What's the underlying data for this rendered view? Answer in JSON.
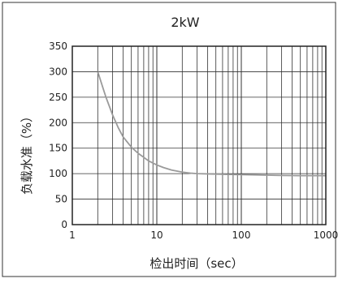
{
  "chart_data": {
    "type": "line",
    "title": "2kW",
    "xlabel": "检出时间（sec）",
    "ylabel": "负载水准（%）",
    "x_scale": "log",
    "xlim": [
      1,
      1000
    ],
    "ylim": [
      0,
      350
    ],
    "x_ticks": [
      1,
      10,
      100,
      1000
    ],
    "x_tick_labels": [
      "1",
      "10",
      "100",
      "1000"
    ],
    "y_ticks": [
      0,
      50,
      100,
      150,
      200,
      250,
      300,
      350
    ],
    "y_tick_labels": [
      "0",
      "50",
      "100",
      "150",
      "200",
      "250",
      "300",
      "350"
    ],
    "grid": true,
    "legend": "none",
    "colors": {
      "line": "#9a9a9a",
      "grid": "#333333",
      "frame": "#222222"
    },
    "series": [
      {
        "x": [
          2,
          2.5,
          3,
          3.5,
          4,
          5,
          6,
          7,
          8,
          10,
          12,
          15,
          20,
          25,
          30,
          40,
          50,
          70,
          100,
          150,
          200,
          300,
          500,
          700,
          1000
        ],
        "values": [
          300,
          250,
          215,
          190,
          172,
          152,
          140,
          132,
          125,
          117,
          112,
          107,
          103,
          101,
          100,
          99.5,
          99,
          98.5,
          98,
          97.5,
          97,
          96.5,
          96,
          96,
          96
        ]
      }
    ]
  }
}
